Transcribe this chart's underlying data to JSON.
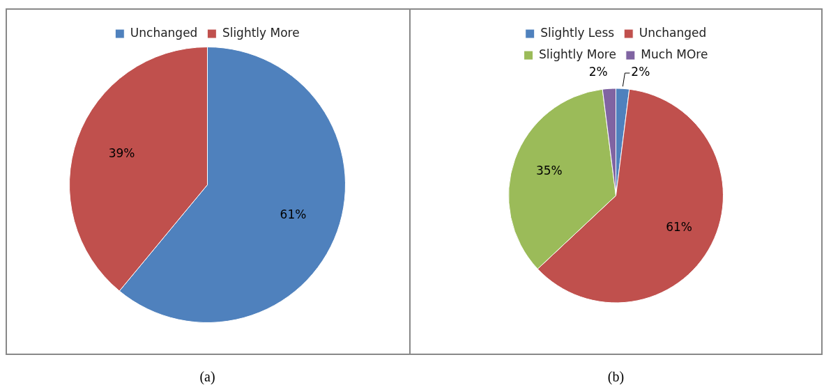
{
  "chart_data": [
    {
      "type": "pie",
      "categories": [
        "Unchanged",
        "Slightly More"
      ],
      "values": [
        61,
        39
      ],
      "colors": [
        "#4f81bd",
        "#c0504d"
      ],
      "value_labels": [
        "61%",
        "39%"
      ],
      "legend": "top",
      "annotations": [
        "(a)"
      ]
    },
    {
      "type": "pie",
      "categories": [
        "Slightly Less",
        "Unchanged",
        "Slightly More",
        "Much MOre"
      ],
      "values": [
        2,
        61,
        35,
        2
      ],
      "colors": [
        "#4f81bd",
        "#c0504d",
        "#9bbb59",
        "#8064a2"
      ],
      "value_labels": [
        "2%",
        "61%",
        "35%",
        "2%"
      ],
      "legend": "top",
      "annotations": [
        "(b)"
      ]
    }
  ]
}
